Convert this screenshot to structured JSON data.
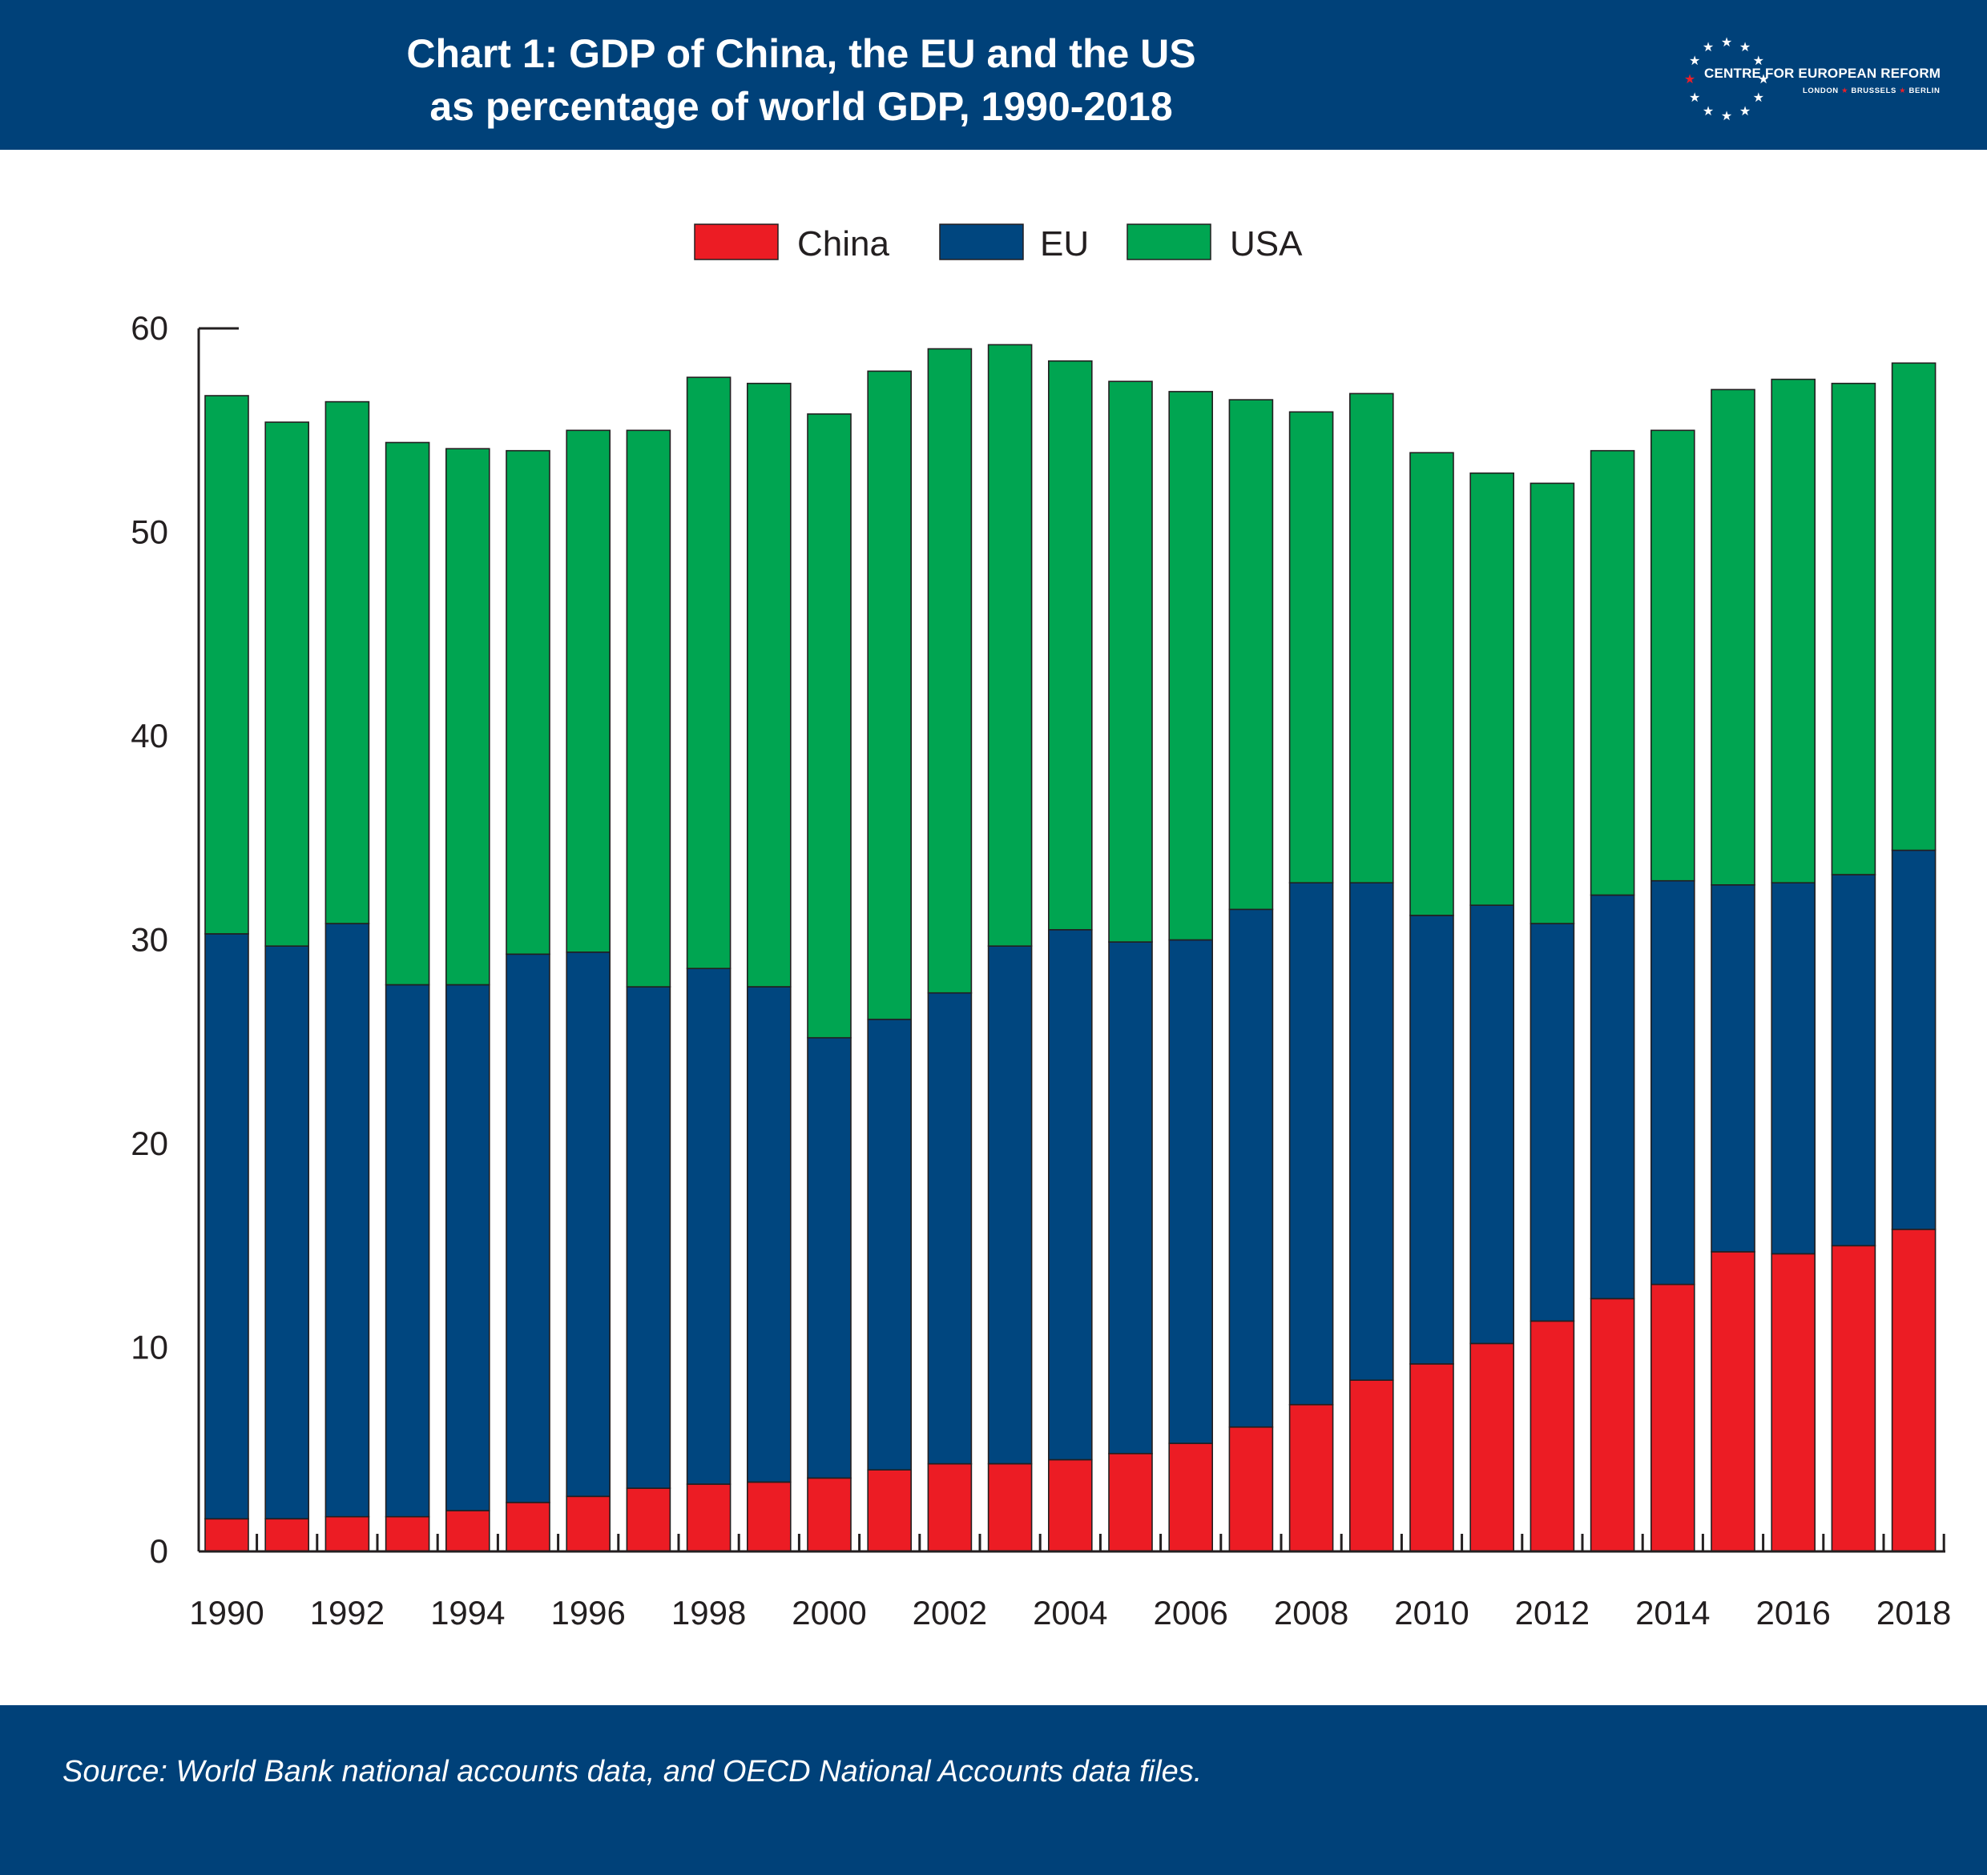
{
  "header": {
    "title_line1": "Chart 1: GDP of China, the EU and the US",
    "title_line2": "as percentage of world GDP, 1990-2018",
    "logo_name": "CENTRE FOR EUROPEAN REFORM",
    "logo_city1": "LONDON",
    "logo_city2": "BRUSSELS",
    "logo_city3": "BERLIN"
  },
  "footer": {
    "source": "Source: World Bank national accounts data, and OECD National Accounts data files."
  },
  "colors": {
    "brand": "#004179",
    "china": "#ec1c24",
    "eu": "#00467f",
    "usa": "#00a551",
    "logo_star_accent": "#e8202a"
  },
  "chart_data": {
    "type": "bar",
    "stacked": true,
    "title": "Chart 1: GDP of China, the EU and the US as percentage of world GDP, 1990-2018",
    "xlabel": "",
    "ylabel": "",
    "ylim": [
      0,
      60
    ],
    "yticks": [
      0,
      10,
      20,
      30,
      40,
      50,
      60
    ],
    "grid": false,
    "legend_position": "top-center",
    "categories": [
      "1990",
      "1991",
      "1992",
      "1993",
      "1994",
      "1995",
      "1996",
      "1997",
      "1998",
      "1999",
      "2000",
      "2001",
      "2002",
      "2003",
      "2004",
      "2005",
      "2006",
      "2007",
      "2008",
      "2009",
      "2010",
      "2011",
      "2012",
      "2013",
      "2014",
      "2015",
      "2016",
      "2017",
      "2018"
    ],
    "x_tick_labels": [
      "1990",
      "1992",
      "1994",
      "1996",
      "1998",
      "2000",
      "2002",
      "2004",
      "2006",
      "2008",
      "2010",
      "2012",
      "2014",
      "2016",
      "2018"
    ],
    "series": [
      {
        "name": "China",
        "color": "#ec1c24",
        "values": [
          1.6,
          1.6,
          1.7,
          1.7,
          2.0,
          2.4,
          2.7,
          3.1,
          3.3,
          3.4,
          3.6,
          4.0,
          4.3,
          4.3,
          4.5,
          4.8,
          5.3,
          6.1,
          7.2,
          8.4,
          9.2,
          10.2,
          11.3,
          12.4,
          13.1,
          14.7,
          14.6,
          15.0,
          15.8
        ]
      },
      {
        "name": "EU",
        "color": "#00467f",
        "values": [
          28.7,
          28.1,
          29.1,
          26.1,
          25.8,
          26.9,
          26.7,
          24.6,
          25.3,
          24.3,
          21.6,
          22.1,
          23.1,
          25.4,
          26.0,
          25.1,
          24.7,
          25.4,
          25.6,
          24.4,
          22.0,
          21.5,
          19.5,
          19.8,
          19.8,
          18.0,
          18.2,
          18.2,
          18.6
        ]
      },
      {
        "name": "USA",
        "color": "#00a551",
        "values": [
          26.4,
          25.7,
          25.6,
          26.6,
          26.3,
          24.7,
          25.6,
          27.3,
          29.0,
          29.6,
          30.6,
          31.8,
          31.6,
          29.5,
          27.9,
          27.5,
          26.9,
          25.0,
          23.1,
          24.0,
          22.7,
          21.2,
          21.6,
          21.8,
          22.1,
          24.3,
          24.7,
          24.1,
          23.9
        ]
      }
    ]
  }
}
